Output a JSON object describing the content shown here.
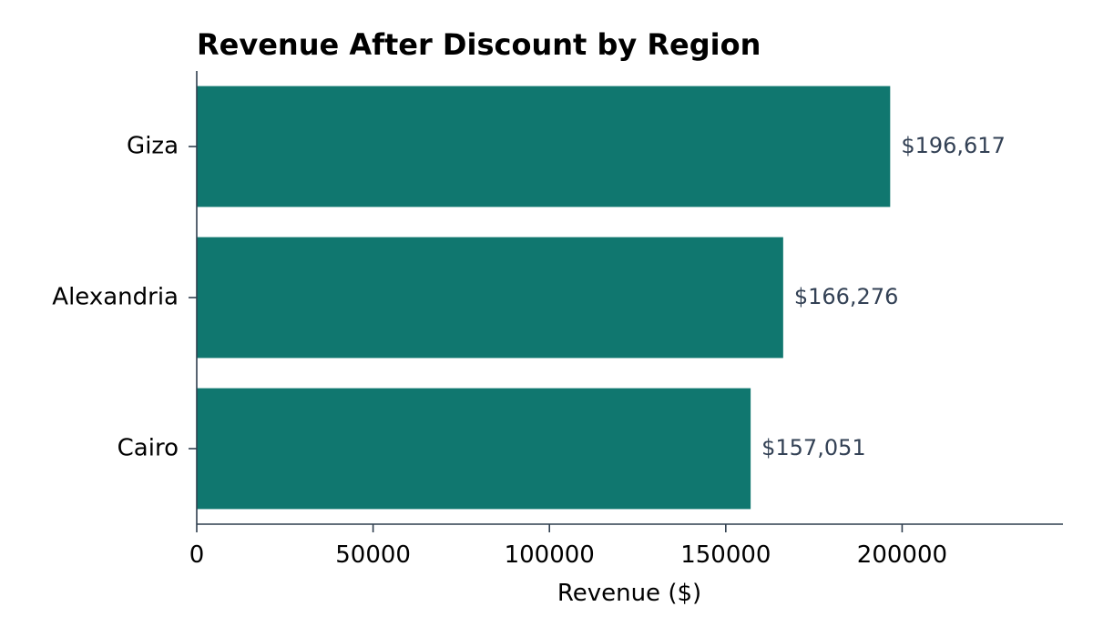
{
  "chart_data": {
    "type": "bar",
    "orientation": "horizontal",
    "title": "Revenue After Discount by Region",
    "xlabel": "Revenue ($)",
    "ylabel": "",
    "categories": [
      "Cairo",
      "Alexandria",
      "Giza"
    ],
    "values": [
      157051,
      166276,
      196617
    ],
    "data_labels": [
      "$157,051",
      "$166,276",
      "$196,617"
    ],
    "xlim": [
      0,
      245600
    ],
    "xticks": [
      0,
      50000,
      100000,
      150000,
      200000
    ],
    "xtick_labels": [
      "0",
      "50000",
      "100000",
      "150000",
      "200000"
    ],
    "bar_color": "#10776f",
    "grid": false,
    "legend": "none"
  }
}
